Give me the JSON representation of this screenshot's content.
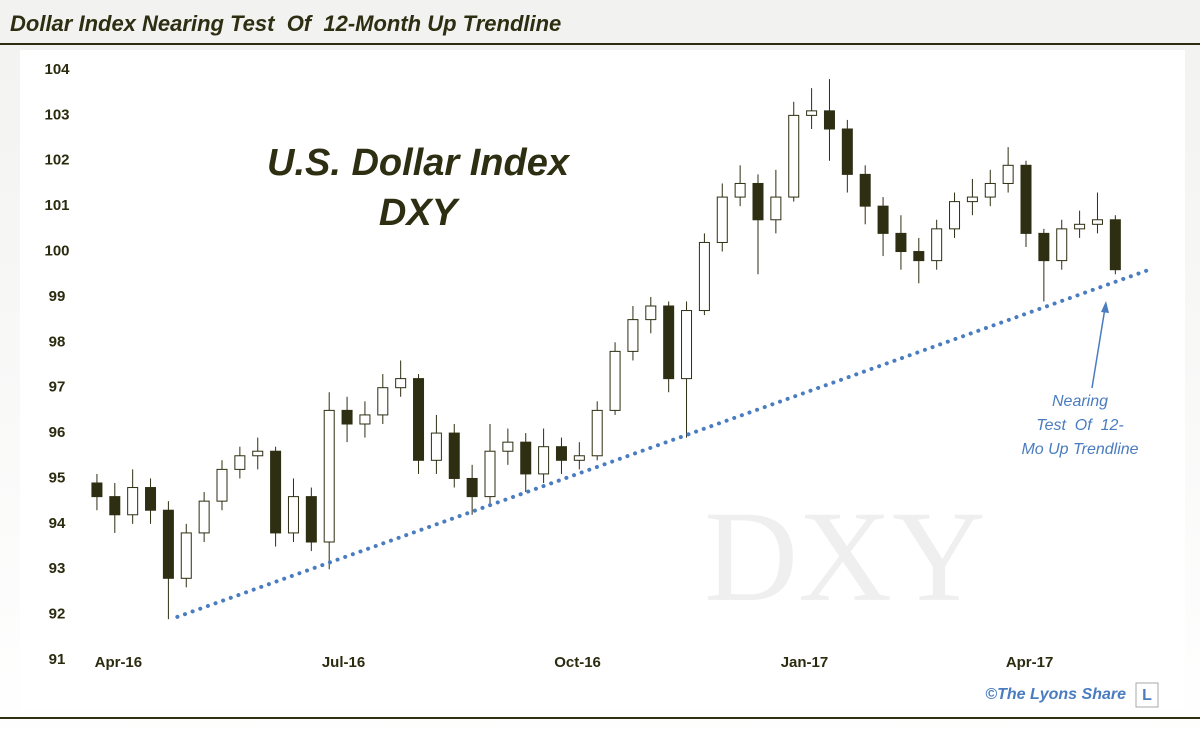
{
  "chart_data": {
    "type": "candlestick",
    "title": "Dollar Index Nearing Test  Of  12-Month Up Trendline",
    "subtitle": [
      "U.S. Dollar Index",
      "DXY"
    ],
    "watermark": "DXY",
    "annotation": [
      "Nearing",
      "Test  Of  12-",
      "Mo Up Trendline"
    ],
    "credit": "©The Lyons Share",
    "logo": "L",
    "up_color": "#ffffff",
    "down_color": "#2e2e12",
    "trendline": {
      "color": "#4a7cc0",
      "x": [
        5,
        59.4
      ],
      "y": [
        91.95,
        99.6
      ]
    },
    "x": [
      0.5,
      1.5,
      2.5,
      3.5,
      4.5,
      5.5,
      6.5,
      7.5,
      8.5,
      9.5,
      10.5,
      11.5,
      12.5,
      13.5,
      14.5,
      15.5,
      16.5,
      17.5,
      18.5,
      19.5,
      20.5,
      21.5,
      22.5,
      23.5,
      24.5,
      25.5,
      26.5,
      27.5,
      28.5,
      29.5,
      30.5,
      31.5,
      32.5,
      33.5,
      34.5,
      35.5,
      36.5,
      37.5,
      38.5,
      39.5,
      40.5,
      41.5,
      42.5,
      43.5,
      44.5,
      45.5,
      46.5,
      47.5,
      48.5,
      49.5,
      50.5,
      51.5,
      52.5,
      53.5,
      54.5,
      55.5,
      56.5,
      57.5
    ],
    "open": [
      94.9,
      94.6,
      94.2,
      94.8,
      94.3,
      92.8,
      93.8,
      94.5,
      95.2,
      95.5,
      95.6,
      93.8,
      94.6,
      93.6,
      96.5,
      96.2,
      96.4,
      97.0,
      97.2,
      95.4,
      96.0,
      95.0,
      94.6,
      95.6,
      95.8,
      95.1,
      95.7,
      95.4,
      95.5,
      96.5,
      97.8,
      98.5,
      98.8,
      97.2,
      98.7,
      100.2,
      101.2,
      101.5,
      100.7,
      101.2,
      103.0,
      103.1,
      102.7,
      101.7,
      101.0,
      100.4,
      100.0,
      99.8,
      100.5,
      101.1,
      101.2,
      101.5,
      101.9,
      100.4,
      99.8,
      100.5,
      100.6,
      100.7
    ],
    "high": [
      95.1,
      94.9,
      95.2,
      95.0,
      94.5,
      94.0,
      94.7,
      95.4,
      95.7,
      95.9,
      95.7,
      95.0,
      94.8,
      96.9,
      96.8,
      96.7,
      97.3,
      97.6,
      97.3,
      96.4,
      96.2,
      95.3,
      96.2,
      96.1,
      96.0,
      96.1,
      95.9,
      95.8,
      96.7,
      98.0,
      98.8,
      99.0,
      98.9,
      98.9,
      100.4,
      101.5,
      101.9,
      101.7,
      101.8,
      103.3,
      103.6,
      103.8,
      102.9,
      101.9,
      101.2,
      100.8,
      100.3,
      100.7,
      101.3,
      101.6,
      101.8,
      102.3,
      102.0,
      100.5,
      100.7,
      100.9,
      101.3,
      100.8
    ],
    "low": [
      94.3,
      93.8,
      94.0,
      94.0,
      91.9,
      92.6,
      93.6,
      94.3,
      95.0,
      95.2,
      93.5,
      93.6,
      93.4,
      93.0,
      95.8,
      95.9,
      96.2,
      96.8,
      95.1,
      95.1,
      94.8,
      94.2,
      94.4,
      95.3,
      94.7,
      94.9,
      95.1,
      95.2,
      95.4,
      96.4,
      97.6,
      98.2,
      96.9,
      95.9,
      98.6,
      100.0,
      101.0,
      99.5,
      100.4,
      101.1,
      102.7,
      102.0,
      101.3,
      100.6,
      99.9,
      99.6,
      99.3,
      99.6,
      100.3,
      100.8,
      101.0,
      101.3,
      100.1,
      98.9,
      99.6,
      100.3,
      100.4,
      99.5
    ],
    "close": [
      94.6,
      94.2,
      94.8,
      94.3,
      92.8,
      93.8,
      94.5,
      95.2,
      95.5,
      95.6,
      93.8,
      94.6,
      93.6,
      96.5,
      96.2,
      96.4,
      97.0,
      97.2,
      95.4,
      96.0,
      95.0,
      94.6,
      95.6,
      95.8,
      95.1,
      95.7,
      95.4,
      95.5,
      96.5,
      97.8,
      98.5,
      98.8,
      97.2,
      98.7,
      100.2,
      101.2,
      101.5,
      100.7,
      101.2,
      103.0,
      103.1,
      102.7,
      101.7,
      101.0,
      100.4,
      100.0,
      99.8,
      100.5,
      101.1,
      101.2,
      101.5,
      101.9,
      100.4,
      99.8,
      100.5,
      100.6,
      100.7,
      99.6
    ],
    "xlim": [
      0,
      60
    ],
    "xticks": [
      {
        "value": 1.7,
        "label": "Apr-16"
      },
      {
        "value": 14.3,
        "label": "Jul-16"
      },
      {
        "value": 27.4,
        "label": "Oct-16"
      },
      {
        "value": 40.1,
        "label": "Jan-17"
      },
      {
        "value": 52.7,
        "label": "Apr-17"
      }
    ],
    "ylim": [
      91,
      104
    ],
    "yticks": [
      91,
      92,
      93,
      94,
      95,
      96,
      97,
      98,
      99,
      100,
      101,
      102,
      103,
      104
    ],
    "grid": false
  }
}
